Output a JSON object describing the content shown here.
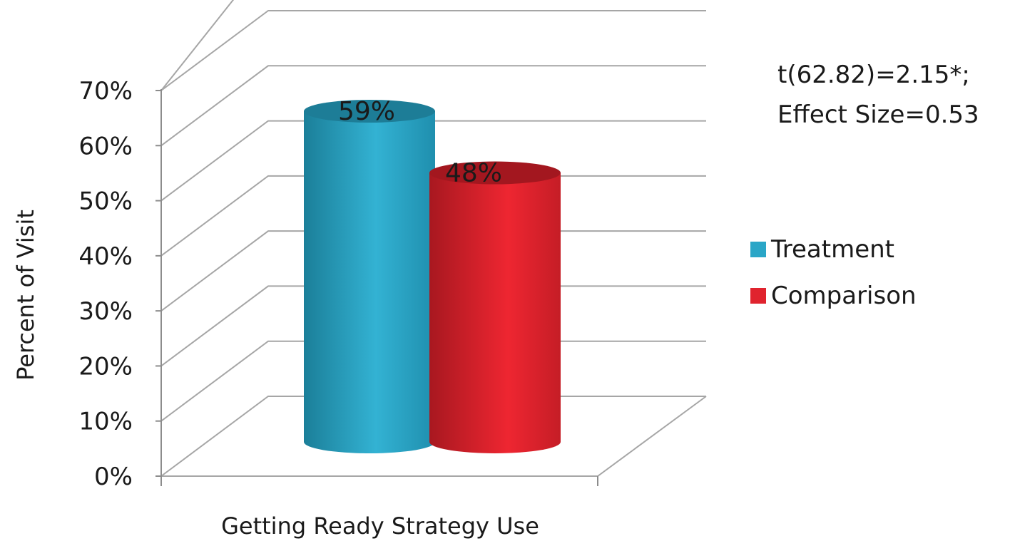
{
  "chart_data": {
    "type": "bar",
    "categories": [
      "Getting Ready Strategy Use"
    ],
    "xlabel": "Getting Ready Strategy Use",
    "ylabel": "Percent of Visit",
    "ylim": [
      0,
      70
    ],
    "yticks": [
      0,
      10,
      20,
      30,
      40,
      50,
      60,
      70
    ],
    "ytick_labels": [
      "0%",
      "10%",
      "20%",
      "30%",
      "40%",
      "50%",
      "60%",
      "70%"
    ],
    "grid": true,
    "legend_position": "right",
    "series": [
      {
        "name": "Treatment",
        "values": [
          59
        ],
        "label": "59%",
        "color": "#2aa6c7"
      },
      {
        "name": "Comparison",
        "values": [
          48
        ],
        "label": "48%",
        "color": "#e0232e"
      }
    ],
    "annotations": [
      "t(62.82)=2.15*;",
      "Effect Size=0.53"
    ]
  }
}
